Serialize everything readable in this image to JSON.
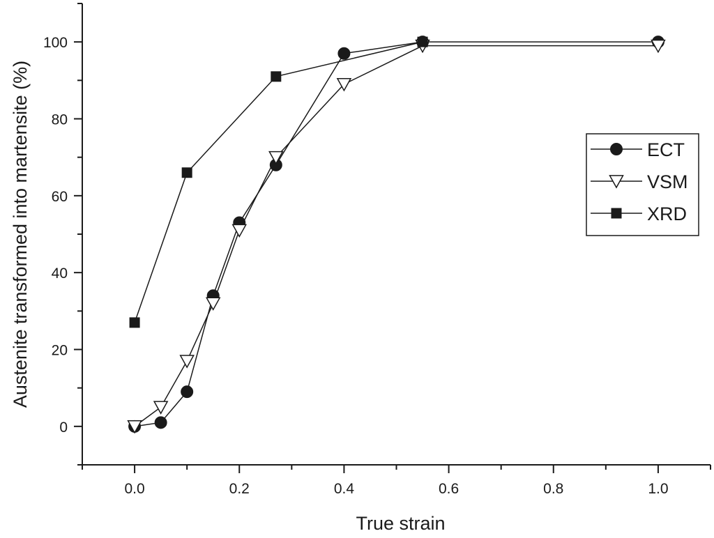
{
  "chart_data": {
    "type": "line",
    "xlabel": "True strain",
    "ylabel": "Austenite transformed into martensite (%)",
    "xlim": [
      -0.1,
      1.1
    ],
    "ylim": [
      -10,
      110
    ],
    "x_ticks": [
      0.0,
      0.2,
      0.4,
      0.6,
      0.8,
      1.0
    ],
    "x_tick_labels": [
      "0.0",
      "0.2",
      "0.4",
      "0.6",
      "0.8",
      "1.0"
    ],
    "y_ticks": [
      0,
      20,
      40,
      60,
      80,
      100
    ],
    "y_tick_labels": [
      "0",
      "20",
      "40",
      "60",
      "80",
      "100"
    ],
    "legend_position": "right",
    "series": [
      {
        "name": "ECT",
        "marker": "filled-circle",
        "color": "#1a1a1a",
        "x": [
          0.0,
          0.05,
          0.1,
          0.15,
          0.2,
          0.27,
          0.4,
          0.55,
          1.0
        ],
        "y": [
          0,
          1,
          9,
          34,
          53,
          68,
          97,
          100,
          100
        ]
      },
      {
        "name": "VSM",
        "marker": "open-down-triangle",
        "color": "#1a1a1a",
        "x": [
          0.0,
          0.05,
          0.1,
          0.15,
          0.2,
          0.27,
          0.4,
          0.55,
          1.0
        ],
        "y": [
          0,
          5,
          17,
          32,
          51,
          70,
          89,
          99,
          99
        ]
      },
      {
        "name": "XRD",
        "marker": "filled-square",
        "color": "#1a1a1a",
        "x": [
          0.0,
          0.1,
          0.27,
          0.55
        ],
        "y": [
          27,
          66,
          91,
          100
        ]
      }
    ]
  }
}
